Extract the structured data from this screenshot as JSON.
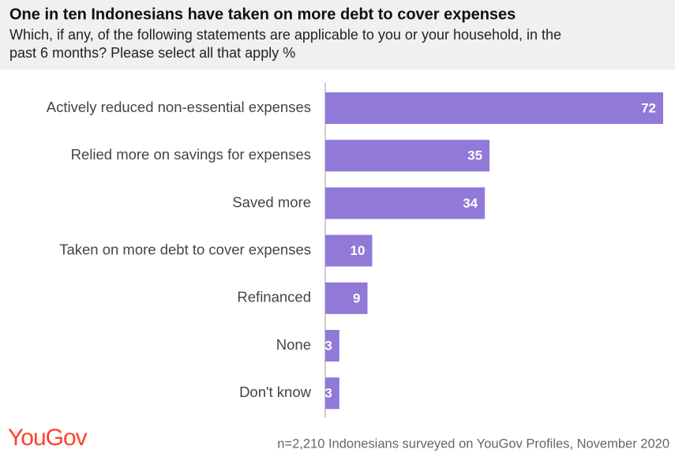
{
  "chart_data": {
    "type": "hbar",
    "title": "One in ten Indonesians have taken on more debt to cover expenses",
    "subtitle": [
      "Which, if any, of the following statements are applicable to you or your household, in the",
      "past 6 months? Please select all that apply %"
    ],
    "categories": [
      "Actively reduced non-essential expenses",
      "Relied more on savings for expenses",
      "Saved more",
      "Taken on more debt to cover expenses",
      "Refinanced",
      "None",
      "Don't know"
    ],
    "values": [
      72,
      35,
      34,
      10,
      9,
      3,
      3
    ],
    "color": "#9179d8",
    "brand": "YouGov",
    "source": "n=2,210 Indonesians surveyed on YouGov Profiles, November 2020"
  }
}
